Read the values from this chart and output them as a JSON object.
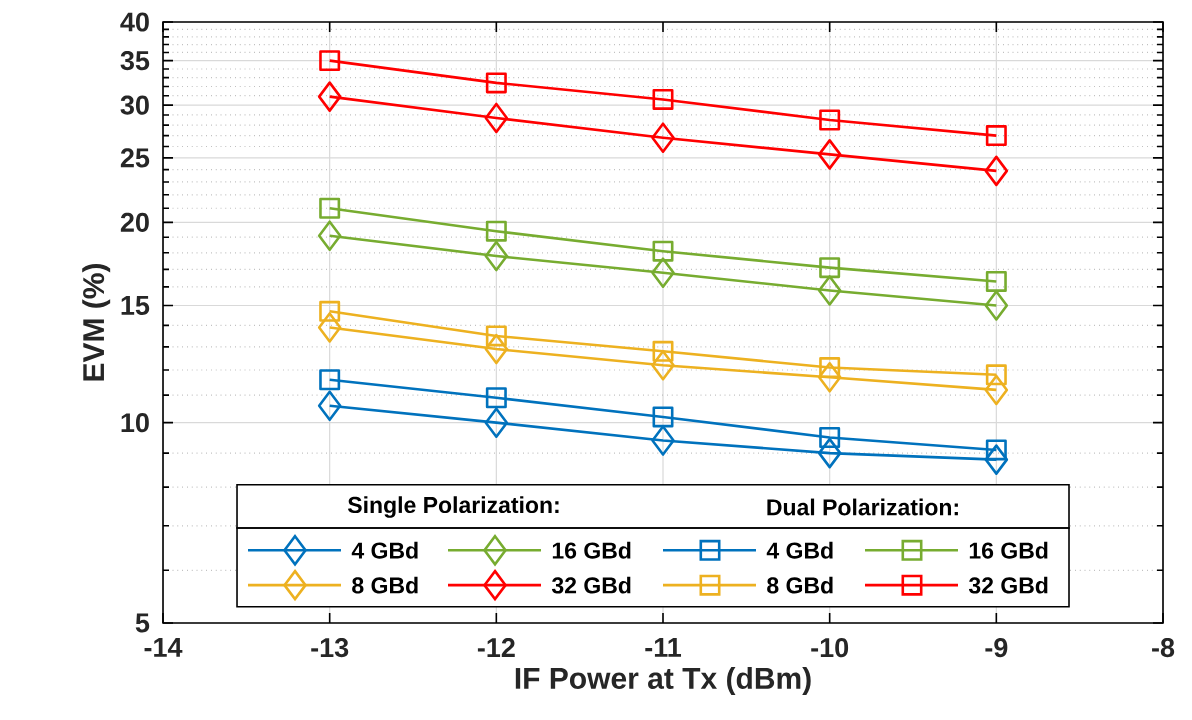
{
  "chart_data": {
    "type": "line",
    "xlabel": "IF Power at Tx (dBm)",
    "ylabel": "EVM (%)",
    "x": [
      -13,
      -12,
      -11,
      -10,
      -9
    ],
    "series": [
      {
        "name": "4 GBd",
        "color": "#0072bd",
        "marker": "diamond",
        "values": [
          10.6,
          10.0,
          9.4,
          9.0,
          8.8
        ]
      },
      {
        "name": "8 GBd",
        "color": "#edb120",
        "marker": "diamond",
        "values": [
          13.9,
          12.9,
          12.2,
          11.7,
          11.2
        ]
      },
      {
        "name": "16 GBd",
        "color": "#77ac30",
        "marker": "diamond",
        "values": [
          19.1,
          17.8,
          16.8,
          15.8,
          15.0
        ]
      },
      {
        "name": "32 GBd",
        "color": "#ff0000",
        "marker": "diamond",
        "values": [
          30.9,
          28.7,
          26.8,
          25.3,
          23.9
        ]
      },
      {
        "name": "4 GBd",
        "color": "#0072bd",
        "marker": "square",
        "values": [
          11.6,
          10.9,
          10.2,
          9.5,
          9.1
        ]
      },
      {
        "name": "8 GBd",
        "color": "#edb120",
        "marker": "square",
        "values": [
          14.7,
          13.5,
          12.8,
          12.1,
          11.8
        ]
      },
      {
        "name": "16 GBd",
        "color": "#77ac30",
        "marker": "square",
        "values": [
          21.0,
          19.4,
          18.1,
          17.1,
          16.3
        ]
      },
      {
        "name": "32 GBd",
        "color": "#ff0000",
        "marker": "square",
        "values": [
          35.0,
          32.4,
          30.6,
          28.5,
          27.0
        ]
      }
    ],
    "annotations": [
      "Single Polarization:",
      "Dual Polarization:"
    ],
    "xlim": [
      -14,
      -8
    ],
    "xticks": [
      -14,
      -13,
      -12,
      -11,
      -10,
      -9,
      -8
    ],
    "ylim": [
      5,
      40
    ],
    "yticks": [
      5,
      {
        "value": 6,
        "label": null
      },
      {
        "value": 7,
        "label": null
      },
      {
        "value": 8,
        "label": null
      },
      {
        "value": 9,
        "label": null
      },
      10,
      {
        "value": 11,
        "label": null
      },
      {
        "value": 12,
        "label": null
      },
      {
        "value": 13,
        "label": null
      },
      {
        "value": 14,
        "label": null
      },
      15,
      {
        "value": 16,
        "label": null
      },
      {
        "value": 17,
        "label": null
      },
      {
        "value": 18,
        "label": null
      },
      {
        "value": 19,
        "label": null
      },
      20,
      {
        "value": 21,
        "label": null
      },
      {
        "value": 22,
        "label": null
      },
      {
        "value": 23,
        "label": null
      },
      {
        "value": 24,
        "label": null
      },
      25,
      {
        "value": 26,
        "label": null
      },
      {
        "value": 27,
        "label": null
      },
      {
        "value": 28,
        "label": null
      },
      {
        "value": 29,
        "label": null
      },
      30,
      {
        "value": 31,
        "label": null
      },
      {
        "value": 32,
        "label": null
      },
      {
        "value": 33,
        "label": null
      },
      {
        "value": 34,
        "label": null
      },
      35,
      {
        "value": 36,
        "label": null
      },
      {
        "value": 37,
        "label": null
      },
      {
        "value": 38,
        "label": null
      },
      {
        "value": 39,
        "label": null
      },
      40
    ],
    "log": "y",
    "grid": true,
    "legend": "bottom",
    "line_style": "solid"
  }
}
